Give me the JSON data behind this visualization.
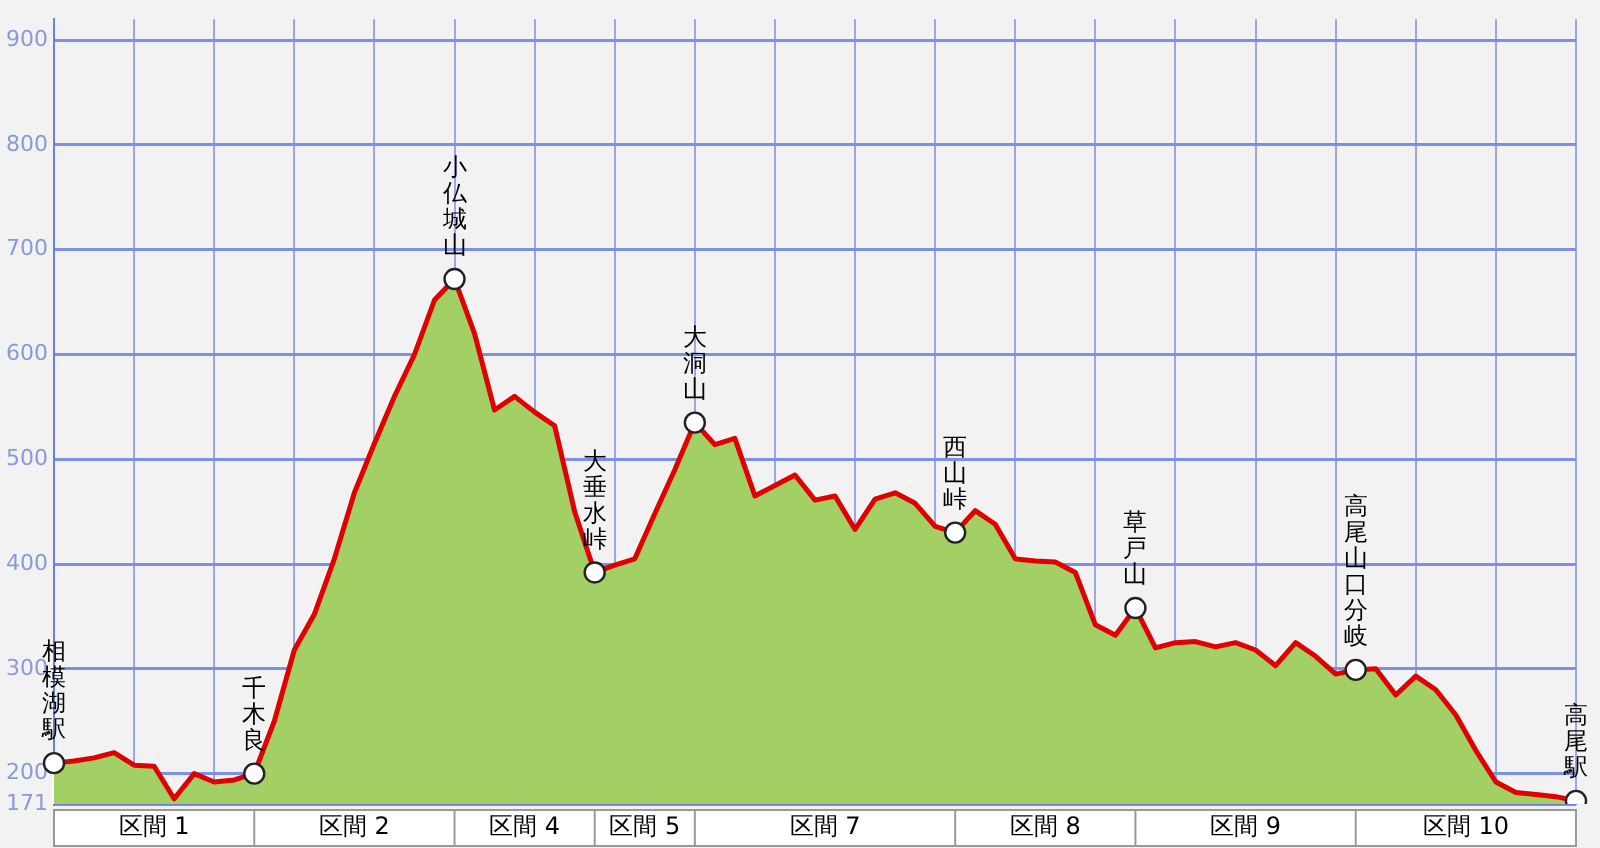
{
  "chart_data": {
    "type": "area",
    "categories": [
      null,
      null,
      null,
      null,
      null,
      null,
      null,
      null,
      null,
      null,
      null,
      null,
      null,
      null,
      null,
      null,
      null,
      null,
      null,
      null,
      null,
      null,
      null,
      null,
      null,
      null,
      null,
      null,
      null,
      null,
      null,
      null,
      null,
      null,
      null,
      null,
      null,
      null,
      null,
      null,
      null,
      null,
      null,
      null,
      null,
      null,
      null,
      null,
      null,
      null,
      null,
      null,
      null,
      null,
      null,
      null,
      null,
      null,
      null,
      null,
      null,
      null,
      null,
      null,
      null,
      null,
      null,
      null,
      null,
      null,
      null,
      null,
      null,
      null,
      null,
      null,
      null
    ],
    "series": [
      {
        "color": "#a3d065",
        "marker": "none",
        "values": [
          210,
          212,
          215,
          220,
          208,
          207,
          176,
          200,
          192,
          194,
          200,
          250,
          318,
          352,
          405,
          468,
          515,
          560,
          600,
          652,
          672,
          620,
          547,
          560,
          545,
          532,
          450,
          392,
          399,
          405,
          448,
          490,
          535,
          514,
          520,
          465,
          475,
          485,
          461,
          465,
          433,
          462,
          468,
          458,
          436,
          430,
          451,
          438,
          405,
          403,
          402,
          392,
          342,
          332,
          358,
          320,
          325,
          326,
          321,
          325,
          318,
          303,
          325,
          312,
          295,
          299,
          300,
          275,
          293,
          280,
          256,
          222,
          192,
          182,
          180,
          178,
          174
        ]
      },
      {
        "type": "line",
        "color": "#e00000",
        "marker": "none",
        "values": [
          210,
          212,
          215,
          220,
          208,
          207,
          176,
          200,
          192,
          194,
          200,
          250,
          318,
          352,
          405,
          468,
          515,
          560,
          600,
          652,
          672,
          620,
          547,
          560,
          545,
          532,
          450,
          392,
          399,
          405,
          448,
          490,
          535,
          514,
          520,
          465,
          475,
          485,
          461,
          465,
          433,
          462,
          468,
          458,
          436,
          430,
          451,
          438,
          405,
          403,
          402,
          392,
          342,
          332,
          358,
          320,
          325,
          326,
          321,
          325,
          318,
          303,
          325,
          312,
          295,
          299,
          300,
          275,
          293,
          280,
          256,
          222,
          192,
          182,
          180,
          178,
          174
        ]
      },
      {
        "type": "scatter",
        "color": "#ffffff",
        "marker": "circle",
        "values": [
          210,
          null,
          null,
          null,
          null,
          null,
          null,
          null,
          null,
          null,
          200,
          null,
          null,
          null,
          null,
          null,
          null,
          null,
          null,
          null,
          null,
          null,
          null,
          null,
          null,
          null,
          null,
          392,
          null,
          null,
          null,
          null,
          null,
          null,
          null,
          null,
          null,
          null,
          null,
          null,
          null,
          null,
          null,
          null,
          null,
          430,
          null,
          null,
          null,
          null,
          null,
          null,
          null,
          null,
          null,
          null,
          null,
          null,
          null,
          null,
          null,
          null,
          null,
          null,
          null,
          299,
          null,
          null,
          null,
          null,
          null,
          null,
          null,
          null,
          null,
          null,
          174
        ],
        "value_labels": [
          "相模湖駅",
          null,
          null,
          null,
          null,
          null,
          null,
          null,
          null,
          null,
          "千木良",
          null,
          null,
          null,
          null,
          null,
          null,
          null,
          null,
          null,
          null,
          null,
          null,
          null,
          null,
          null,
          null,
          "大垂水峠",
          null,
          null,
          null,
          null,
          null,
          null,
          null,
          null,
          null,
          null,
          null,
          null,
          null,
          null,
          null,
          null,
          null,
          "西山峠",
          null,
          null,
          null,
          null,
          null,
          null,
          null,
          null,
          null,
          null,
          null,
          null,
          null,
          null,
          null,
          null,
          null,
          null,
          null,
          "高尾山口分岐",
          null,
          null,
          null,
          null,
          null,
          null,
          null,
          null,
          null,
          null,
          "高尾駅"
        ]
      },
      {
        "type": "scatter",
        "color": "#ffffff",
        "marker": "circle",
        "values": [
          null,
          null,
          null,
          null,
          null,
          null,
          null,
          null,
          null,
          null,
          null,
          null,
          null,
          null,
          null,
          null,
          null,
          null,
          null,
          null,
          672,
          null,
          null,
          null,
          null,
          null,
          null,
          null,
          null,
          null,
          null,
          null,
          535,
          null,
          null,
          null,
          null,
          null,
          null,
          null,
          null,
          null,
          null,
          null,
          null,
          null,
          null,
          null,
          null,
          null,
          null,
          null,
          null,
          null,
          358,
          null,
          null,
          null,
          null,
          null,
          null,
          null,
          null,
          null,
          null,
          null,
          null,
          null,
          null,
          null,
          null,
          null,
          null,
          null,
          null,
          null,
          null
        ],
        "value_labels": [
          null,
          null,
          null,
          null,
          null,
          null,
          null,
          null,
          null,
          null,
          null,
          null,
          null,
          null,
          null,
          null,
          null,
          null,
          null,
          null,
          "小仏城山",
          null,
          null,
          null,
          null,
          null,
          null,
          null,
          null,
          null,
          null,
          null,
          "大洞山",
          null,
          null,
          null,
          null,
          null,
          null,
          null,
          null,
          null,
          null,
          null,
          null,
          null,
          null,
          null,
          null,
          null,
          null,
          null,
          null,
          null,
          "草戸山",
          null,
          null,
          null,
          null,
          null,
          null,
          null,
          null,
          null,
          null,
          null,
          null,
          null,
          null,
          null,
          null,
          null,
          null,
          null,
          null,
          null,
          null
        ]
      }
    ],
    "ylim": [
      171,
      920
    ],
    "yticks": [
      171,
      200,
      300,
      400,
      500,
      600,
      700,
      800,
      900
    ],
    "grid": true,
    "legend": false,
    "tick_labels": "y",
    "annotations": [
      "区間 1",
      "区間 2",
      "区間 4",
      "区間 5",
      "区間 7",
      "区間 8",
      "区間 9",
      "区間 10"
    ]
  }
}
